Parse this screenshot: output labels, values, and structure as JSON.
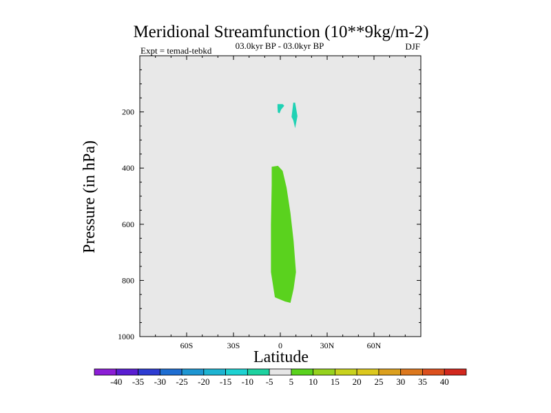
{
  "chart_data": {
    "type": "heatmap",
    "title": "Meridional Streamfunction (10**9kg/m-2)",
    "left_label": "Expt = temad-tebkd",
    "center_label": "03.0kyr BP - 03.0kyr BP",
    "right_label": "DJF",
    "xlabel": "Latitude",
    "ylabel": "Pressure (in hPa)",
    "xlim": [
      -90,
      90
    ],
    "ylim": [
      1000,
      0
    ],
    "x_ticks": [
      {
        "value": -60,
        "label": "60S"
      },
      {
        "value": -30,
        "label": "30S"
      },
      {
        "value": 0,
        "label": "0"
      },
      {
        "value": 30,
        "label": "30N"
      },
      {
        "value": 60,
        "label": "60N"
      }
    ],
    "y_ticks": [
      {
        "value": 200,
        "label": "200"
      },
      {
        "value": 400,
        "label": "400"
      },
      {
        "value": 600,
        "label": "600"
      },
      {
        "value": 800,
        "label": "800"
      },
      {
        "value": 1000,
        "label": "1000"
      }
    ],
    "background_color": "#e8e8e8",
    "regions": [
      {
        "name": "green-cell",
        "color": "#5ad21e",
        "range": "5 to 10",
        "points": [
          [
            -5.5,
            395
          ],
          [
            -1.5,
            392
          ],
          [
            1.5,
            410
          ],
          [
            4,
            470
          ],
          [
            6.5,
            560
          ],
          [
            8.5,
            660
          ],
          [
            10,
            770
          ],
          [
            8.5,
            830
          ],
          [
            6.5,
            880
          ],
          [
            3,
            875
          ],
          [
            -3.5,
            860
          ],
          [
            -6,
            770
          ],
          [
            -6,
            600
          ],
          [
            -5.5,
            460
          ]
        ]
      },
      {
        "name": "cyan-cell-left",
        "color": "#20d2b4",
        "range": "-10 to -5",
        "points": [
          [
            -1.8,
            172
          ],
          [
            1.5,
            172
          ],
          [
            2.5,
            178
          ],
          [
            0.5,
            192
          ],
          [
            -0.5,
            205
          ],
          [
            -1.6,
            202
          ],
          [
            -1.8,
            185
          ]
        ]
      },
      {
        "name": "cyan-cell-right",
        "color": "#20d2b4",
        "range": "-10 to -5",
        "points": [
          [
            8.3,
            167
          ],
          [
            9.5,
            167
          ],
          [
            11,
            215
          ],
          [
            9.5,
            258
          ],
          [
            8.3,
            230
          ],
          [
            7.2,
            218
          ]
        ]
      }
    ],
    "colorbar": {
      "labels": [
        "-40",
        "-35",
        "-30",
        "-25",
        "-20",
        "-15",
        "-10",
        "-5",
        "5",
        "10",
        "15",
        "20",
        "25",
        "30",
        "35",
        "40"
      ],
      "colors": [
        "#8c1ed6",
        "#5a1ed2",
        "#2d3cd2",
        "#1e6ed2",
        "#1e96d2",
        "#1eb4d2",
        "#1ed2d2",
        "#1ed2a0",
        "#e6e6e6",
        "#5ad21e",
        "#96d21e",
        "#c8d21e",
        "#dcc81e",
        "#dca01e",
        "#dc781e",
        "#dc501e",
        "#d2281e"
      ]
    }
  }
}
